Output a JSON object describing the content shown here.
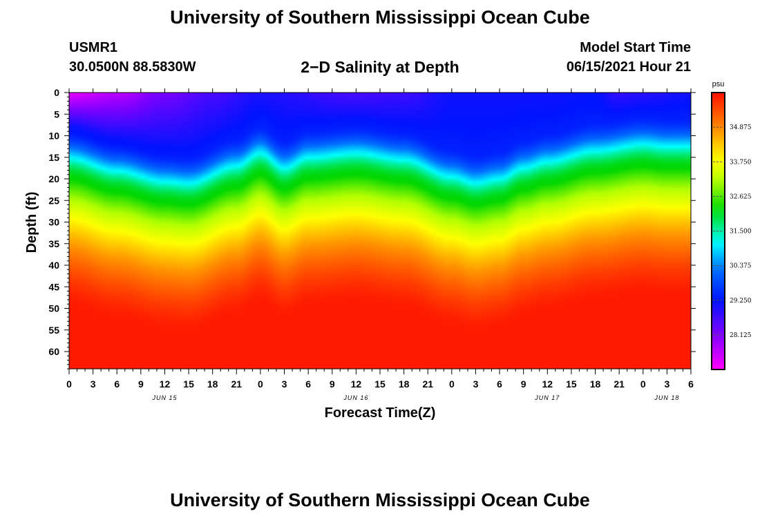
{
  "header": {
    "title": "University of Southern Mississippi Ocean Cube",
    "station_id": "USMR1",
    "station_coords": "30.0500N  88.5830W",
    "chart_title": "2−D Salinity at Depth",
    "start_label": "Model Start Time",
    "start_value": "06/15/2021 Hour 21"
  },
  "footer": {
    "title": "University of Southern Mississippi Ocean Cube"
  },
  "chart_data": {
    "type": "heatmap",
    "title": "2−D Salinity at Depth",
    "xlabel": "Forecast Time(Z)",
    "ylabel": "Depth (ft)",
    "x_range_hours": [
      0,
      78
    ],
    "y_range_ft": [
      0,
      64
    ],
    "y_ticks": [
      0,
      5,
      10,
      15,
      20,
      25,
      30,
      35,
      40,
      45,
      50,
      55,
      60
    ],
    "x_ticks": [
      "0",
      "3",
      "6",
      "9",
      "12",
      "15",
      "18",
      "21",
      "0",
      "3",
      "6",
      "9",
      "12",
      "15",
      "18",
      "21",
      "0",
      "3",
      "6",
      "9",
      "12",
      "15",
      "18",
      "21",
      "0",
      "3",
      "6"
    ],
    "date_labels": [
      {
        "label": "JUN 15",
        "hour": 12
      },
      {
        "label": "JUN 16",
        "hour": 36
      },
      {
        "label": "JUN 17",
        "hour": 60
      },
      {
        "label": "JUN 18",
        "hour": 75
      }
    ],
    "colorbar": {
      "unit": "psu",
      "min": 27.0,
      "max": 36.0,
      "tick_labels": [
        "34.875",
        "33.750",
        "32.625",
        "31.500",
        "30.375",
        "29.250",
        "28.125"
      ],
      "tick_values": [
        34.875,
        33.75,
        32.625,
        31.5,
        30.375,
        29.25,
        28.125
      ]
    },
    "grid": false,
    "halocline_depth_ft": {
      "hours": [
        0,
        6,
        12,
        15,
        21,
        24,
        27,
        30,
        36,
        42,
        48,
        51,
        54,
        57,
        60,
        66,
        72,
        75,
        78
      ],
      "depth": [
        20,
        23,
        25.5,
        26,
        22,
        19,
        22.5,
        20,
        19,
        20.5,
        24.5,
        26,
        25,
        22.5,
        21,
        18.5,
        17,
        17.5,
        17.5
      ]
    },
    "surface_salinity_psu": {
      "hours": [
        0,
        6,
        12,
        18,
        24,
        36,
        42,
        48,
        60,
        66,
        69,
        72,
        78
      ],
      "value": [
        27.2,
        27.6,
        28.2,
        28.6,
        29.0,
        28.6,
        28.7,
        29.1,
        29.1,
        29.2,
        28.8,
        28.9,
        29.1
      ]
    },
    "bottom_salinity_psu": 35.9
  }
}
